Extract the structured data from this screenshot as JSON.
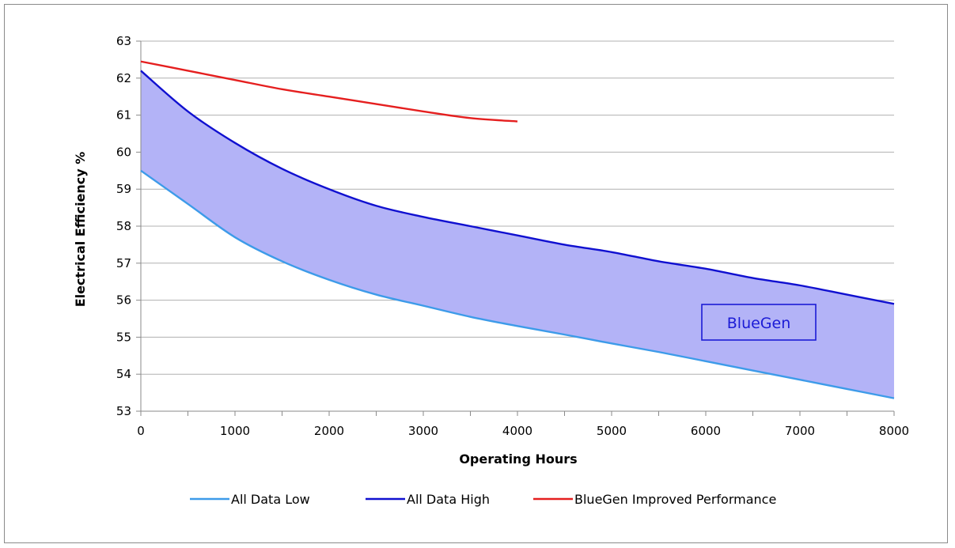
{
  "chart_data": {
    "type": "line",
    "title": "",
    "xlabel": "Operating Hours",
    "ylabel": "Electrical Efficiency %",
    "xlim": [
      0,
      8000
    ],
    "ylim": [
      53,
      63
    ],
    "x_ticks": [
      0,
      1000,
      2000,
      3000,
      4000,
      5000,
      6000,
      7000,
      8000
    ],
    "y_ticks": [
      53,
      54,
      55,
      56,
      57,
      58,
      59,
      60,
      61,
      62,
      63
    ],
    "grid": "horizontal",
    "legend_position": "bottom",
    "series": [
      {
        "name": "All Data Low",
        "color": "#3d9be9",
        "x": [
          0,
          500,
          1000,
          1500,
          2000,
          2500,
          3000,
          3500,
          4000,
          4500,
          5000,
          5500,
          6000,
          6500,
          7000,
          7500,
          8000
        ],
        "y": [
          59.5,
          58.6,
          57.7,
          57.05,
          56.55,
          56.15,
          55.85,
          55.55,
          55.3,
          55.07,
          54.83,
          54.6,
          54.35,
          54.1,
          53.85,
          53.6,
          53.35
        ]
      },
      {
        "name": "All Data High",
        "color": "#1010d0",
        "x": [
          0,
          500,
          1000,
          1500,
          2000,
          2500,
          3000,
          3500,
          4000,
          4500,
          5000,
          5500,
          6000,
          6500,
          7000,
          7500,
          8000
        ],
        "y": [
          62.2,
          61.1,
          60.25,
          59.55,
          59.0,
          58.55,
          58.25,
          58.0,
          57.75,
          57.5,
          57.3,
          57.05,
          56.85,
          56.6,
          56.4,
          56.15,
          55.9
        ]
      },
      {
        "name": "BlueGen Improved Performance",
        "color": "#e51f1f",
        "x": [
          0,
          500,
          1000,
          1500,
          2000,
          2500,
          3000,
          3500,
          4000
        ],
        "y": [
          62.45,
          62.2,
          61.95,
          61.7,
          61.5,
          61.3,
          61.1,
          60.92,
          60.83
        ]
      }
    ],
    "fill_between": {
      "lower": "All Data Low",
      "upper": "All Data High",
      "color": "#b3b3f7"
    },
    "annotation": {
      "text": "BlueGen",
      "color": "#1b1bd6"
    }
  }
}
